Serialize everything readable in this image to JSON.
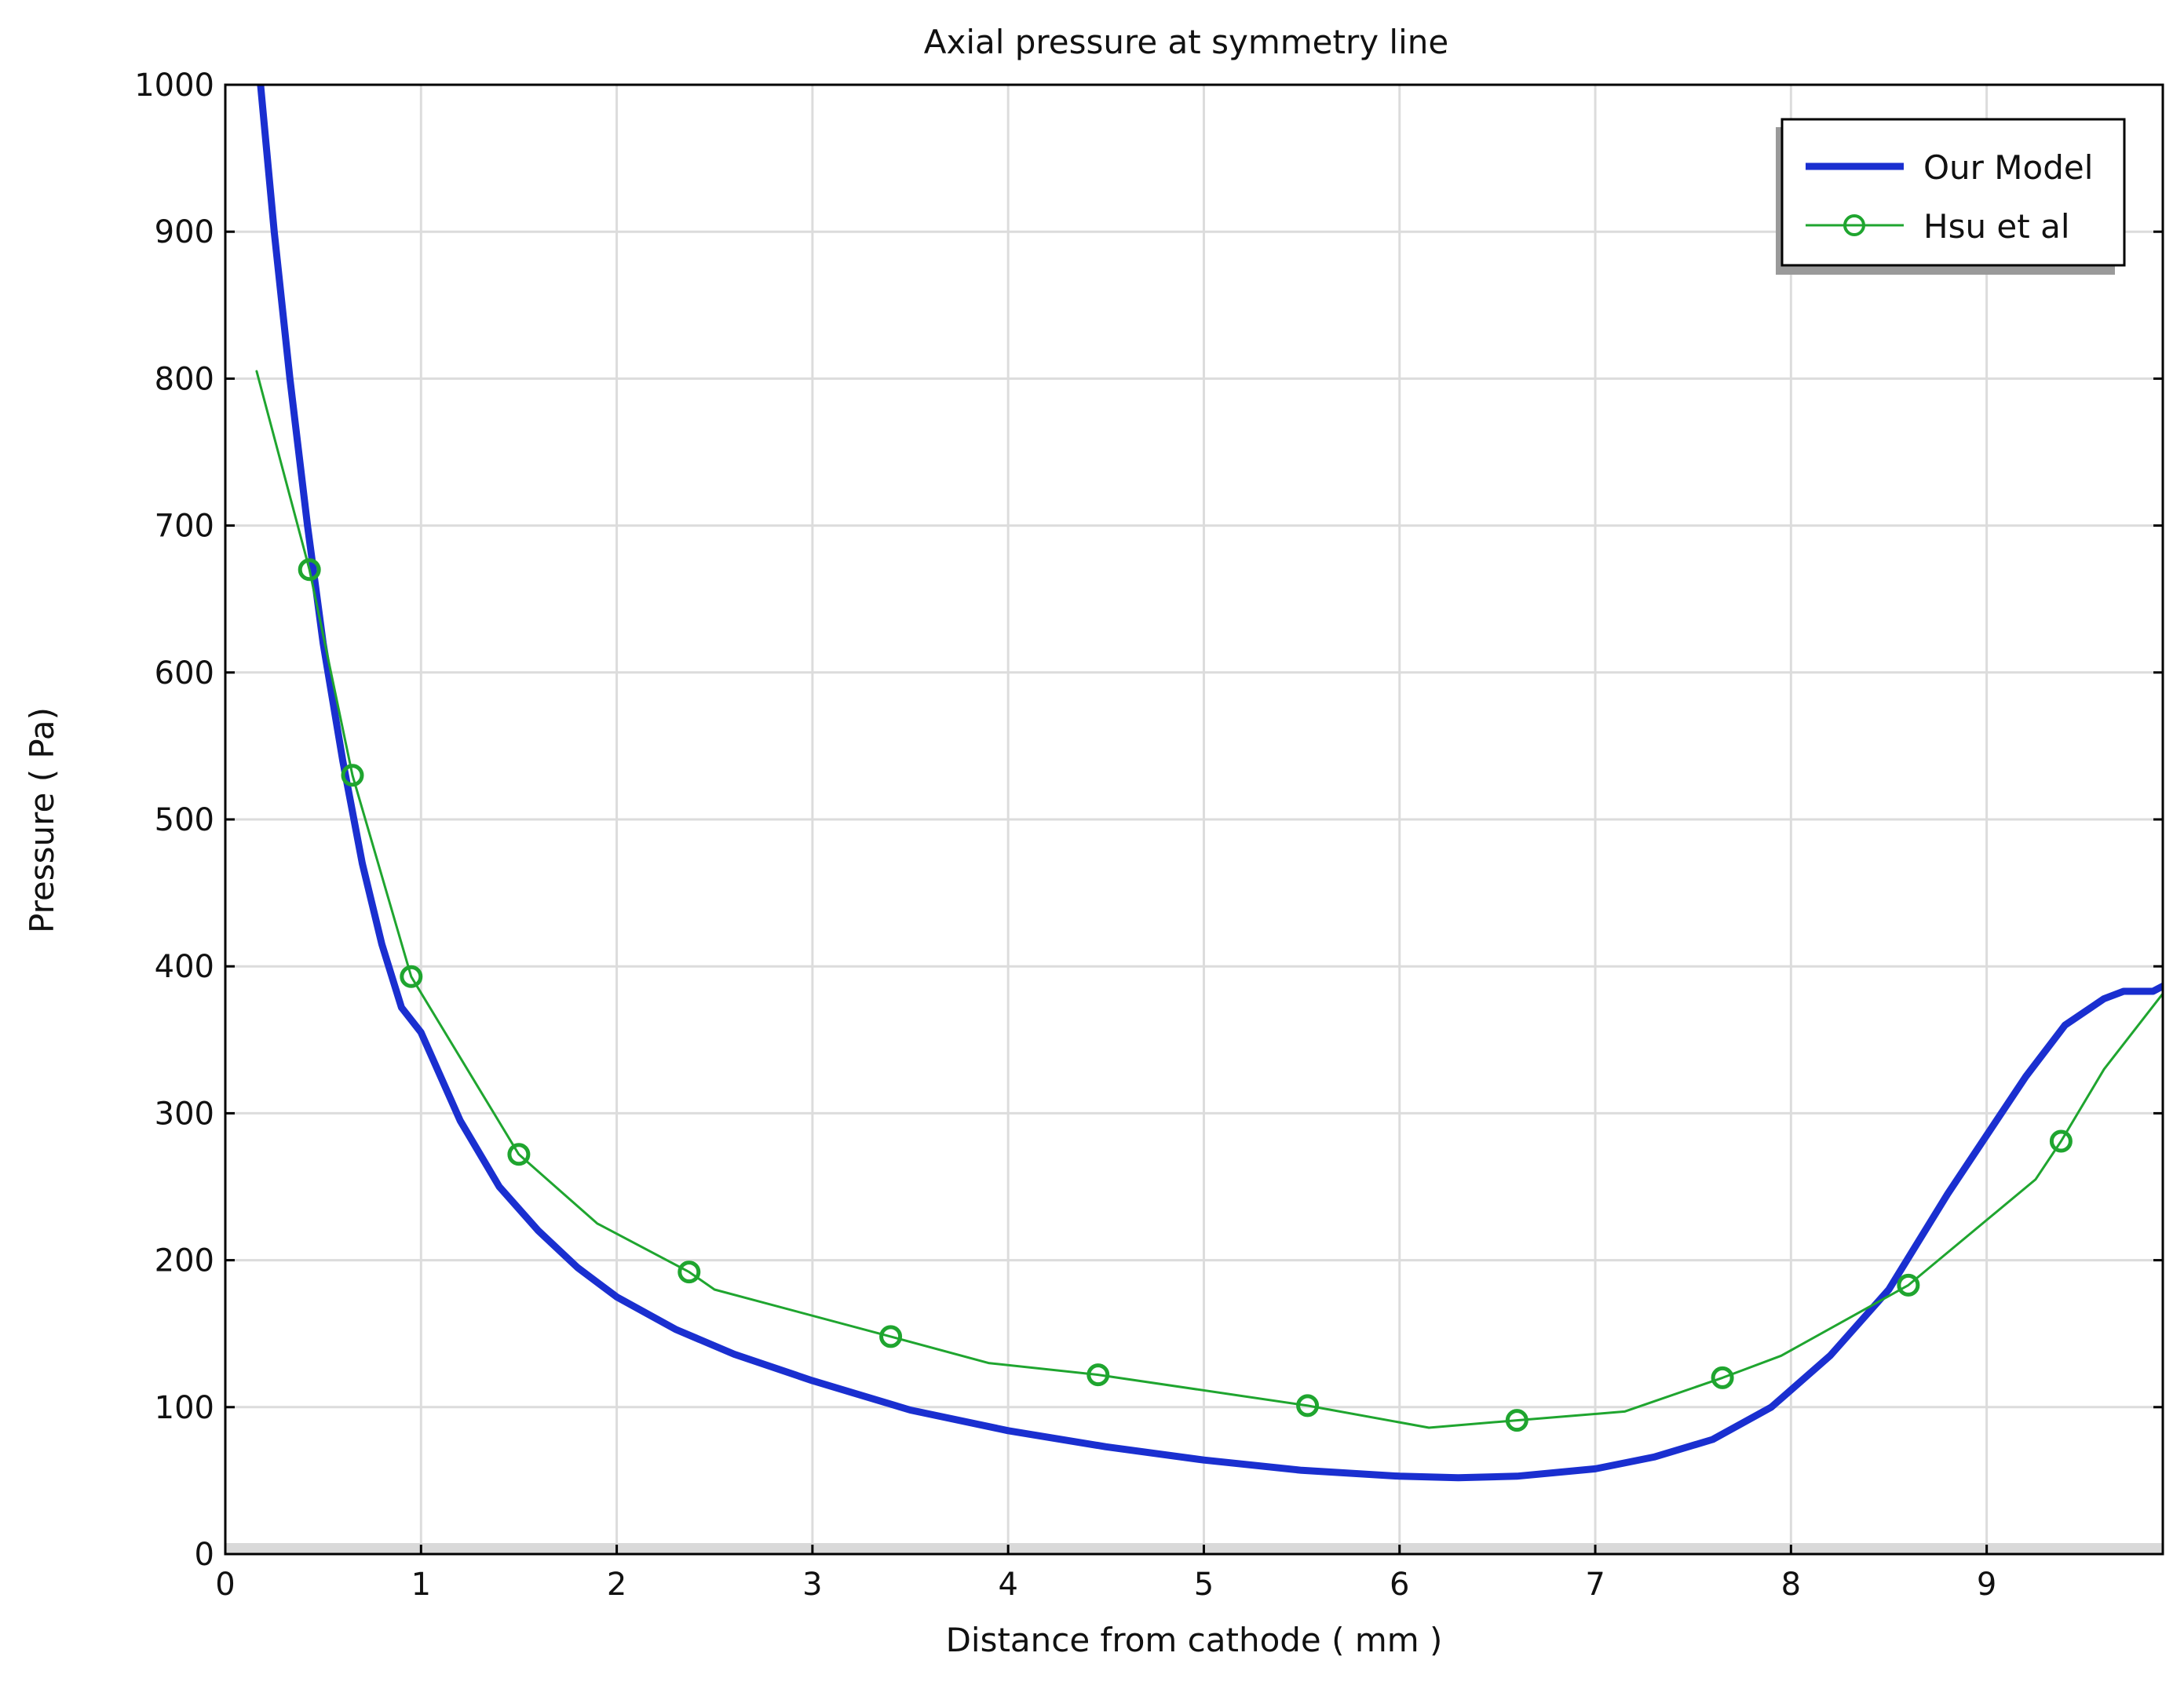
{
  "chart_data": {
    "type": "line",
    "title": "Axial pressure at symmetry line",
    "xlabel": "Distance from cathode ( mm )",
    "ylabel": "Pressure ( Pa)",
    "xlim": [
      0,
      9.9
    ],
    "ylim": [
      0,
      1000
    ],
    "x_ticks": [
      "0",
      "1",
      "2",
      "3",
      "4",
      "5",
      "6",
      "7",
      "8",
      "9"
    ],
    "y_ticks": [
      "0",
      "100",
      "200",
      "300",
      "400",
      "500",
      "600",
      "700",
      "800",
      "900",
      "1000"
    ],
    "grid": true,
    "legend_position": "top-right",
    "series": [
      {
        "name": "Our Model",
        "color": "#1a2fd0",
        "marker": "none",
        "x": [
          0.18,
          0.25,
          0.33,
          0.42,
          0.5,
          0.6,
          0.7,
          0.8,
          0.9,
          1.0,
          1.2,
          1.4,
          1.6,
          1.8,
          2.0,
          2.3,
          2.6,
          3.0,
          3.5,
          4.0,
          4.5,
          5.0,
          5.5,
          6.0,
          6.3,
          6.6,
          7.0,
          7.3,
          7.6,
          7.9,
          8.2,
          8.5,
          8.8,
          9.0,
          9.2,
          9.4,
          9.6,
          9.7,
          9.85,
          9.95
        ],
        "y": [
          1000,
          900,
          800,
          700,
          620,
          540,
          470,
          415,
          372,
          355,
          295,
          250,
          220,
          195,
          175,
          153,
          136,
          118,
          98,
          84,
          73,
          64,
          57,
          53,
          52,
          53,
          58,
          66,
          78,
          100,
          135,
          180,
          245,
          285,
          325,
          360,
          378,
          383,
          383,
          390
        ]
      },
      {
        "name": "Hsu et al",
        "color": "#1fa52f",
        "marker": "circle",
        "x": [
          0.16,
          0.43,
          0.65,
          0.95,
          1.5,
          1.9,
          2.37,
          2.5,
          3.4,
          3.9,
          4.46,
          5.53,
          6.15,
          6.6,
          7.15,
          7.65,
          7.95,
          8.6,
          9.25,
          9.38,
          9.6,
          9.95
        ],
        "y": [
          805,
          670,
          530,
          393,
          272,
          225,
          192,
          180,
          148,
          130,
          122,
          101,
          86,
          91,
          97,
          120,
          135,
          183,
          255,
          281,
          330,
          390
        ],
        "markers_at": [
          1,
          2,
          3,
          4,
          6,
          8,
          10,
          11,
          13,
          15,
          17,
          19
        ]
      }
    ]
  }
}
